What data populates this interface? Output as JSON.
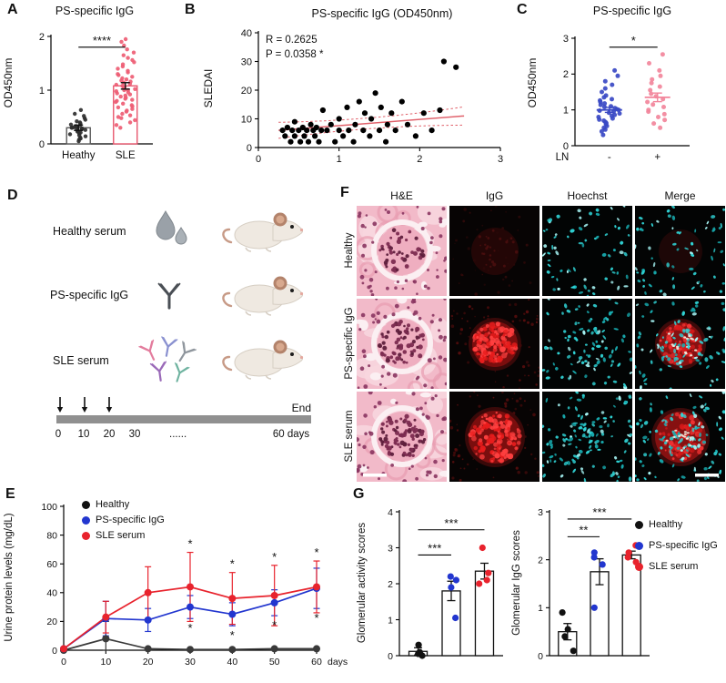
{
  "panel_labels": {
    "a": "A",
    "b": "B",
    "c": "C",
    "d": "D",
    "e": "E",
    "f": "F",
    "g": "G"
  },
  "chart_data": [
    {
      "panel": "A",
      "type": "scatter-column",
      "title": "PS-specific IgG",
      "ylabel": "OD450nm",
      "ylim": [
        0,
        2
      ],
      "yticks": [
        0,
        1,
        2
      ],
      "categories": [
        "Heathy",
        "SLE"
      ],
      "significance": [
        {
          "from": 0,
          "to": 1,
          "y": 1.8,
          "label": "****"
        }
      ],
      "series": [
        {
          "name": "Heathy",
          "point_color": "#2e2e2e",
          "bar_color": "#5a5a5a",
          "mean": 0.3,
          "sem": 0.05,
          "values": [
            0.05,
            0.08,
            0.1,
            0.12,
            0.14,
            0.16,
            0.18,
            0.2,
            0.21,
            0.23,
            0.25,
            0.26,
            0.27,
            0.28,
            0.29,
            0.3,
            0.3,
            0.31,
            0.32,
            0.33,
            0.35,
            0.36,
            0.38,
            0.4,
            0.42,
            0.45,
            0.48,
            0.52,
            0.56,
            0.63
          ]
        },
        {
          "name": "SLE",
          "point_color": "#ee5d74",
          "bar_color": "#e8566d",
          "mean": 1.08,
          "sem": 0.06,
          "values": [
            0.3,
            0.35,
            0.4,
            0.44,
            0.48,
            0.5,
            0.53,
            0.56,
            0.6,
            0.62,
            0.65,
            0.68,
            0.7,
            0.72,
            0.75,
            0.78,
            0.8,
            0.82,
            0.84,
            0.86,
            0.88,
            0.9,
            0.92,
            0.94,
            0.96,
            0.98,
            1.0,
            1.0,
            1.02,
            1.04,
            1.06,
            1.08,
            1.1,
            1.12,
            1.14,
            1.16,
            1.18,
            1.2,
            1.22,
            1.25,
            1.28,
            1.3,
            1.33,
            1.36,
            1.4,
            1.44,
            1.48,
            1.52,
            1.56,
            1.6,
            1.65,
            1.7,
            1.76,
            1.83,
            1.9,
            1.95
          ]
        }
      ]
    },
    {
      "panel": "B",
      "type": "scatter",
      "title": "PS-specific IgG (OD450nm)",
      "ylabel": "SLEDAI",
      "xlim": [
        0,
        3
      ],
      "ylim": [
        0,
        40
      ],
      "xticks": [
        0,
        1,
        2,
        3
      ],
      "yticks": [
        0,
        10,
        20,
        30,
        40
      ],
      "stats": {
        "r": "R = 0.2625",
        "p": "P = 0.0358 *"
      },
      "point_color": "#000000",
      "fit_color": "#e0606a",
      "fit_line": {
        "x": [
          0.25,
          2.55
        ],
        "y": [
          6.0,
          11.0
        ]
      },
      "points": [
        [
          0.3,
          6
        ],
        [
          0.33,
          4
        ],
        [
          0.36,
          7
        ],
        [
          0.4,
          2
        ],
        [
          0.42,
          6
        ],
        [
          0.45,
          4
        ],
        [
          0.45,
          9
        ],
        [
          0.5,
          6
        ],
        [
          0.52,
          2
        ],
        [
          0.55,
          7
        ],
        [
          0.57,
          4
        ],
        [
          0.6,
          6
        ],
        [
          0.62,
          2
        ],
        [
          0.65,
          8
        ],
        [
          0.68,
          6
        ],
        [
          0.7,
          4
        ],
        [
          0.72,
          7
        ],
        [
          0.75,
          2
        ],
        [
          0.78,
          6
        ],
        [
          0.8,
          13
        ],
        [
          0.85,
          6
        ],
        [
          0.9,
          8
        ],
        [
          0.95,
          2
        ],
        [
          1.0,
          6
        ],
        [
          1.0,
          10
        ],
        [
          1.05,
          4
        ],
        [
          1.1,
          14
        ],
        [
          1.12,
          6
        ],
        [
          1.18,
          2
        ],
        [
          1.2,
          8
        ],
        [
          1.25,
          16
        ],
        [
          1.3,
          6
        ],
        [
          1.32,
          12
        ],
        [
          1.38,
          4
        ],
        [
          1.4,
          10
        ],
        [
          1.45,
          19
        ],
        [
          1.5,
          6
        ],
        [
          1.52,
          14
        ],
        [
          1.58,
          2
        ],
        [
          1.6,
          8
        ],
        [
          1.65,
          12
        ],
        [
          1.7,
          6
        ],
        [
          1.78,
          16
        ],
        [
          1.85,
          8
        ],
        [
          1.95,
          4
        ],
        [
          2.05,
          12
        ],
        [
          2.15,
          6
        ],
        [
          2.25,
          13
        ],
        [
          2.3,
          30
        ],
        [
          2.45,
          28
        ]
      ]
    },
    {
      "panel": "C",
      "type": "scatter-column",
      "title": "PS-specific IgG",
      "ylabel": "OD450nm",
      "xlabel": "LN",
      "ylim": [
        0,
        3
      ],
      "yticks": [
        0,
        1,
        2,
        3
      ],
      "categories": [
        "-",
        "+"
      ],
      "significance": [
        {
          "from": 0,
          "to": 1,
          "y": 2.75,
          "label": "*"
        }
      ],
      "series": [
        {
          "name": "LN-",
          "point_color": "#3a49c4",
          "mean": 1.0,
          "sem": 0.07,
          "values": [
            0.3,
            0.4,
            0.45,
            0.5,
            0.55,
            0.6,
            0.63,
            0.66,
            0.7,
            0.73,
            0.76,
            0.8,
            0.83,
            0.86,
            0.9,
            0.92,
            0.95,
            0.98,
            1.0,
            1.02,
            1.05,
            1.08,
            1.1,
            1.14,
            1.18,
            1.22,
            1.26,
            1.3,
            1.35,
            1.4,
            1.5,
            1.6,
            1.7,
            1.8,
            1.95,
            2.1
          ]
        },
        {
          "name": "LN+",
          "point_color": "#f2859b",
          "mean": 1.35,
          "sem": 0.12,
          "values": [
            0.5,
            0.62,
            0.72,
            0.8,
            0.88,
            0.95,
            1.0,
            1.08,
            1.15,
            1.22,
            1.3,
            1.38,
            1.45,
            1.55,
            1.65,
            1.75,
            1.85,
            1.95,
            2.1,
            2.3,
            2.55
          ]
        }
      ]
    },
    {
      "panel": "E",
      "type": "line",
      "ylabel": "Urine protein levels (mg/dL)",
      "x": [
        0,
        10,
        20,
        30,
        40,
        50,
        60
      ],
      "x_unit": "days",
      "ylim": [
        0,
        100
      ],
      "yticks": [
        0,
        20,
        40,
        60,
        80,
        100
      ],
      "series": [
        {
          "name": "Healthy",
          "color": "#3a3a3a",
          "values": [
            0,
            8,
            1,
            0.5,
            0.5,
            1,
            1
          ],
          "errors": [
            1,
            12,
            1,
            1,
            1,
            1,
            1
          ]
        },
        {
          "name": "PS-specific IgG",
          "color": "#2236cf",
          "values": [
            1,
            22,
            21,
            30,
            25,
            33,
            43
          ],
          "errors": [
            1,
            12,
            8,
            8,
            8,
            9,
            14
          ],
          "stars": "below",
          "star_x": [
            30,
            40,
            50,
            60
          ]
        },
        {
          "name": "SLE serum",
          "color": "#e8232d",
          "values": [
            1,
            23,
            40,
            44,
            36,
            38,
            44
          ],
          "errors": [
            1,
            11,
            18,
            24,
            18,
            21,
            18
          ],
          "stars": "above",
          "star_x": [
            30,
            40,
            50,
            60
          ]
        }
      ]
    },
    {
      "panel": "G-left",
      "type": "bar-scatter",
      "ylabel": "Glomerular activity scores",
      "ylim": [
        0,
        4
      ],
      "yticks": [
        0,
        1,
        2,
        3,
        4
      ],
      "groups": [
        "Healthy",
        "PS-specific IgG",
        "SLE serum"
      ],
      "point_colors": [
        "#111111",
        "#2236cf",
        "#e8232d"
      ],
      "bars": [
        0.12,
        1.8,
        2.35
      ],
      "errors": [
        0.1,
        0.27,
        0.22
      ],
      "points": [
        [
          0.0,
          0.05,
          0.1,
          0.3
        ],
        [
          1.05,
          1.9,
          2.1,
          2.2
        ],
        [
          2.0,
          2.1,
          2.3,
          3.0
        ]
      ],
      "significance": [
        {
          "from": 0,
          "to": 1,
          "y": 2.8,
          "label": "***"
        },
        {
          "from": 0,
          "to": 2,
          "y": 3.5,
          "label": "***"
        }
      ]
    },
    {
      "panel": "G-right",
      "type": "bar-scatter",
      "ylabel": "Glomerular IgG scores",
      "ylim": [
        0,
        3
      ],
      "yticks": [
        0,
        1,
        2,
        3
      ],
      "groups": [
        "Healthy",
        "PS-specific IgG",
        "SLE serum"
      ],
      "point_colors": [
        "#111111",
        "#2236cf",
        "#e8232d"
      ],
      "bars": [
        0.5,
        1.75,
        2.1
      ],
      "errors": [
        0.17,
        0.27,
        0.08
      ],
      "points": [
        [
          0.1,
          0.4,
          0.55,
          0.9
        ],
        [
          1.0,
          1.9,
          2.05,
          2.15
        ],
        [
          1.95,
          2.05,
          2.15,
          2.3
        ]
      ],
      "significance": [
        {
          "from": 0,
          "to": 1,
          "y": 2.48,
          "label": "**"
        },
        {
          "from": 0,
          "to": 2,
          "y": 2.85,
          "label": "***"
        }
      ]
    }
  ],
  "panel_d": {
    "rows": [
      {
        "label": "Healthy serum",
        "icon": "serum-drops-icon"
      },
      {
        "label": "PS-specific IgG",
        "icon": "antibody-icon"
      },
      {
        "label": "SLE serum",
        "icon": "antibody-mix-icon"
      }
    ],
    "timeline": {
      "end_label": "End",
      "ticks": [
        "0",
        "10",
        "20",
        "30",
        "......",
        "60 days"
      ]
    }
  },
  "panel_f": {
    "col_headers": [
      "H&E",
      "IgG",
      "Hoechst",
      "Merge"
    ],
    "row_labels": [
      "Healthy",
      "PS-specific IgG",
      "SLE serum"
    ]
  },
  "legend": [
    {
      "name": "Healthy",
      "color": "#111111"
    },
    {
      "name": "PS-specific IgG",
      "color": "#2236cf"
    },
    {
      "name": "SLE serum",
      "color": "#e8232d"
    }
  ]
}
